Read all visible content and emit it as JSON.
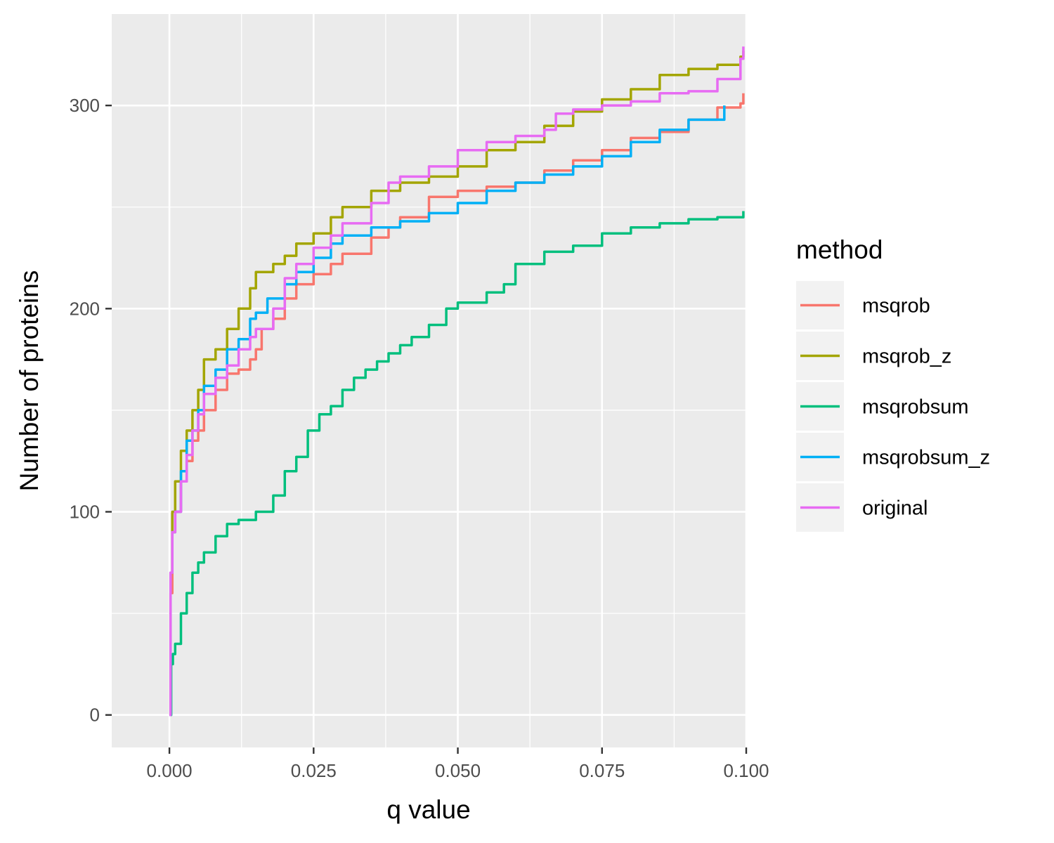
{
  "chart_data": {
    "type": "line",
    "title": "",
    "xlabel": "q value",
    "ylabel": "Number of proteins",
    "xlim": [
      -0.01,
      0.1
    ],
    "ylim": [
      -16,
      345
    ],
    "x_ticks": [
      "0.000",
      "0.025",
      "0.050",
      "0.075",
      "0.100"
    ],
    "y_ticks": [
      "0",
      "100",
      "200",
      "300"
    ],
    "grid": true,
    "legend": {
      "title": "method",
      "placement": "right"
    },
    "series": [
      {
        "name": "msqrob",
        "color": "#F8766D",
        "points": [
          [
            0.0,
            0
          ],
          [
            0.0002,
            60
          ],
          [
            0.0005,
            90
          ],
          [
            0.001,
            100
          ],
          [
            0.002,
            115
          ],
          [
            0.003,
            125
          ],
          [
            0.004,
            135
          ],
          [
            0.005,
            140
          ],
          [
            0.006,
            150
          ],
          [
            0.008,
            160
          ],
          [
            0.01,
            168
          ],
          [
            0.012,
            170
          ],
          [
            0.014,
            175
          ],
          [
            0.015,
            180
          ],
          [
            0.016,
            190
          ],
          [
            0.018,
            195
          ],
          [
            0.02,
            205
          ],
          [
            0.022,
            212
          ],
          [
            0.025,
            217
          ],
          [
            0.028,
            222
          ],
          [
            0.03,
            227
          ],
          [
            0.035,
            235
          ],
          [
            0.038,
            240
          ],
          [
            0.04,
            245
          ],
          [
            0.045,
            255
          ],
          [
            0.05,
            258
          ],
          [
            0.055,
            260
          ],
          [
            0.06,
            262
          ],
          [
            0.065,
            268
          ],
          [
            0.07,
            273
          ],
          [
            0.075,
            278
          ],
          [
            0.08,
            284
          ],
          [
            0.085,
            287
          ],
          [
            0.09,
            293
          ],
          [
            0.095,
            299
          ],
          [
            0.099,
            301
          ],
          [
            0.0995,
            306
          ]
        ]
      },
      {
        "name": "msqrob_z",
        "color": "#A3A500",
        "points": [
          [
            0.0,
            0
          ],
          [
            0.0002,
            70
          ],
          [
            0.0005,
            100
          ],
          [
            0.001,
            115
          ],
          [
            0.002,
            130
          ],
          [
            0.003,
            140
          ],
          [
            0.004,
            150
          ],
          [
            0.005,
            160
          ],
          [
            0.006,
            175
          ],
          [
            0.008,
            180
          ],
          [
            0.01,
            190
          ],
          [
            0.012,
            200
          ],
          [
            0.014,
            210
          ],
          [
            0.015,
            218
          ],
          [
            0.018,
            222
          ],
          [
            0.02,
            226
          ],
          [
            0.022,
            232
          ],
          [
            0.025,
            237
          ],
          [
            0.028,
            245
          ],
          [
            0.03,
            250
          ],
          [
            0.035,
            258
          ],
          [
            0.04,
            262
          ],
          [
            0.045,
            265
          ],
          [
            0.05,
            270
          ],
          [
            0.055,
            278
          ],
          [
            0.06,
            282
          ],
          [
            0.065,
            290
          ],
          [
            0.07,
            297
          ],
          [
            0.075,
            303
          ],
          [
            0.08,
            308
          ],
          [
            0.085,
            315
          ],
          [
            0.09,
            318
          ],
          [
            0.095,
            320
          ],
          [
            0.099,
            324
          ],
          [
            0.0995,
            327
          ]
        ]
      },
      {
        "name": "msqrobsum",
        "color": "#00BF7D",
        "points": [
          [
            0.0,
            0
          ],
          [
            0.0003,
            25
          ],
          [
            0.0006,
            30
          ],
          [
            0.001,
            35
          ],
          [
            0.002,
            50
          ],
          [
            0.003,
            60
          ],
          [
            0.004,
            70
          ],
          [
            0.005,
            75
          ],
          [
            0.006,
            80
          ],
          [
            0.008,
            88
          ],
          [
            0.01,
            94
          ],
          [
            0.012,
            96
          ],
          [
            0.015,
            100
          ],
          [
            0.018,
            108
          ],
          [
            0.02,
            120
          ],
          [
            0.022,
            127
          ],
          [
            0.024,
            140
          ],
          [
            0.026,
            148
          ],
          [
            0.028,
            152
          ],
          [
            0.03,
            160
          ],
          [
            0.032,
            166
          ],
          [
            0.034,
            170
          ],
          [
            0.036,
            174
          ],
          [
            0.038,
            178
          ],
          [
            0.04,
            182
          ],
          [
            0.042,
            186
          ],
          [
            0.045,
            192
          ],
          [
            0.048,
            200
          ],
          [
            0.05,
            203
          ],
          [
            0.055,
            208
          ],
          [
            0.058,
            212
          ],
          [
            0.06,
            222
          ],
          [
            0.065,
            228
          ],
          [
            0.07,
            231
          ],
          [
            0.075,
            237
          ],
          [
            0.08,
            240
          ],
          [
            0.085,
            242
          ],
          [
            0.09,
            244
          ],
          [
            0.095,
            245
          ],
          [
            0.0995,
            248
          ]
        ]
      },
      {
        "name": "msqrobsum_z",
        "color": "#00B0F6",
        "points": [
          [
            0.0,
            0
          ],
          [
            0.0002,
            70
          ],
          [
            0.0005,
            90
          ],
          [
            0.001,
            100
          ],
          [
            0.002,
            120
          ],
          [
            0.003,
            135
          ],
          [
            0.004,
            140
          ],
          [
            0.005,
            150
          ],
          [
            0.006,
            162
          ],
          [
            0.008,
            170
          ],
          [
            0.01,
            180
          ],
          [
            0.012,
            185
          ],
          [
            0.014,
            195
          ],
          [
            0.015,
            198
          ],
          [
            0.017,
            205
          ],
          [
            0.02,
            212
          ],
          [
            0.022,
            218
          ],
          [
            0.025,
            225
          ],
          [
            0.028,
            232
          ],
          [
            0.03,
            236
          ],
          [
            0.035,
            240
          ],
          [
            0.04,
            243
          ],
          [
            0.045,
            247
          ],
          [
            0.05,
            252
          ],
          [
            0.055,
            258
          ],
          [
            0.06,
            262
          ],
          [
            0.065,
            266
          ],
          [
            0.07,
            270
          ],
          [
            0.075,
            275
          ],
          [
            0.08,
            282
          ],
          [
            0.085,
            288
          ],
          [
            0.09,
            293
          ],
          [
            0.0962,
            300
          ]
        ]
      },
      {
        "name": "original",
        "color": "#E76BF3",
        "points": [
          [
            0.0,
            0
          ],
          [
            0.0002,
            70
          ],
          [
            0.0005,
            90
          ],
          [
            0.001,
            100
          ],
          [
            0.002,
            115
          ],
          [
            0.003,
            128
          ],
          [
            0.004,
            140
          ],
          [
            0.005,
            148
          ],
          [
            0.006,
            158
          ],
          [
            0.008,
            166
          ],
          [
            0.01,
            172
          ],
          [
            0.012,
            180
          ],
          [
            0.014,
            186
          ],
          [
            0.015,
            190
          ],
          [
            0.018,
            200
          ],
          [
            0.02,
            215
          ],
          [
            0.022,
            222
          ],
          [
            0.025,
            230
          ],
          [
            0.028,
            236
          ],
          [
            0.03,
            242
          ],
          [
            0.035,
            252
          ],
          [
            0.038,
            262
          ],
          [
            0.04,
            265
          ],
          [
            0.045,
            270
          ],
          [
            0.05,
            278
          ],
          [
            0.055,
            282
          ],
          [
            0.06,
            285
          ],
          [
            0.065,
            288
          ],
          [
            0.067,
            296
          ],
          [
            0.07,
            298
          ],
          [
            0.075,
            300
          ],
          [
            0.08,
            302
          ],
          [
            0.085,
            306
          ],
          [
            0.09,
            307
          ],
          [
            0.095,
            313
          ],
          [
            0.099,
            323
          ],
          [
            0.0995,
            329
          ]
        ]
      }
    ]
  }
}
